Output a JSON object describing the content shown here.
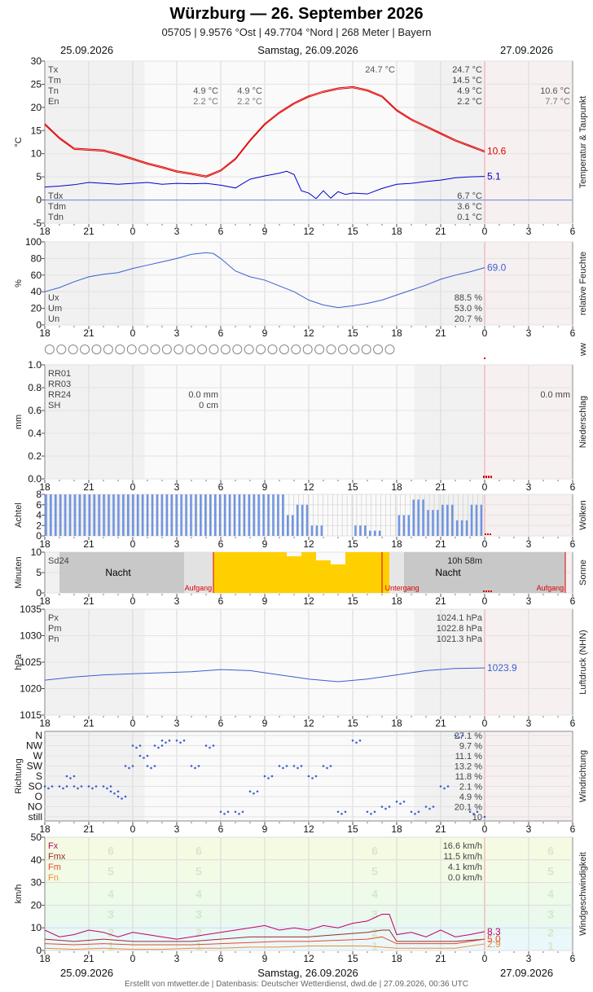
{
  "header": {
    "title": "Würzburg  —  26. September 2026",
    "subtitle": "05705  |  9.9576 °Ost  |  49.7704 °Nord  |  268 Meter  |  Bayern",
    "date_left": "25.09.2026",
    "date_center": "Samstag, 26.09.2026",
    "date_right": "27.09.2026"
  },
  "footer": "Erstellt von mtwetter.de | Datenbasis: Deutscher Wetterdienst, dwd.de | 27.09.2026, 00:36 UTC",
  "x_ticks": [
    "18",
    "21",
    "0",
    "3",
    "6",
    "9",
    "12",
    "15",
    "18",
    "21",
    "0",
    "3",
    "6"
  ],
  "colors": {
    "temp": "#e00000",
    "dew": "#0000cc",
    "series_blue": "#3a5fd0",
    "rain_red": "#d00000",
    "cloud": "#6f95e4",
    "sun": "#ffd000",
    "night": "#c8c8c8"
  },
  "chart_data": [
    {
      "type": "line",
      "panel": "temperature",
      "side_label": "Temperatur & Taupunkt",
      "ylabel": "°C",
      "ylim": [
        -5,
        30
      ],
      "yticks": [
        "30",
        "25",
        "20",
        "15",
        "10",
        "5",
        "0",
        "-5"
      ],
      "xrange_hours": [
        -6,
        30
      ],
      "series": [
        {
          "name": "Temperatur",
          "color": "#e00000",
          "x": [
            -6,
            -5,
            -4,
            -3,
            -2,
            -1,
            0,
            1,
            2,
            3,
            4,
            5,
            6,
            7,
            8,
            9,
            10,
            11,
            12,
            13,
            14,
            15,
            16,
            17,
            18,
            19,
            20,
            21,
            22,
            23,
            24
          ],
          "y": [
            16.5,
            13.5,
            11.2,
            11.0,
            10.8,
            10.0,
            9.0,
            8.0,
            7.2,
            6.3,
            5.8,
            5.2,
            6.5,
            9.0,
            13.0,
            16.5,
            19.0,
            21.0,
            22.5,
            23.5,
            24.2,
            24.5,
            23.8,
            22.5,
            19.5,
            17.5,
            16.0,
            14.5,
            13.0,
            11.8,
            10.6
          ]
        },
        {
          "name": "Taupunkt",
          "color": "#0000cc",
          "x": [
            -6,
            -5,
            -4,
            -3,
            -2,
            -1,
            0,
            1,
            2,
            3,
            4,
            5,
            6,
            7,
            8,
            9,
            10,
            10.5,
            11,
            11.5,
            12,
            12.5,
            13,
            13.5,
            14,
            14.5,
            15,
            16,
            17,
            18,
            19,
            20,
            21,
            22,
            23,
            24
          ],
          "y": [
            2.8,
            3.0,
            3.3,
            3.8,
            3.6,
            3.4,
            3.6,
            3.8,
            3.4,
            3.6,
            3.5,
            3.6,
            3.2,
            2.6,
            4.5,
            5.2,
            5.8,
            6.2,
            5.5,
            2.0,
            1.5,
            0.3,
            2.0,
            0.4,
            1.8,
            1.2,
            1.5,
            1.3,
            2.5,
            3.4,
            3.6,
            4.0,
            4.3,
            4.8,
            5.0,
            5.1
          ]
        }
      ],
      "end_labels": [
        {
          "text": "10.6",
          "color": "#e00000",
          "y": 10.6
        },
        {
          "text": "5.1",
          "color": "#0000cc",
          "y": 5.1
        }
      ],
      "stats_upper": {
        "labels": [
          "Tx",
          "Tm",
          "Tn",
          "En"
        ],
        "day1": {
          "tn": "4.9 °C",
          "en": "2.2 °C"
        },
        "day2": {
          "tx_peak": "24.7 °C",
          "tn": "4.9 °C",
          "en": "2.2 °C"
        },
        "day3": {
          "tx": "24.7 °C",
          "tm": "14.5 °C",
          "tn": "4.9 °C",
          "en": "2.2 °C"
        },
        "day4": {
          "tn": "10.6 °C",
          "en": "7.7 °C"
        }
      },
      "stats_lower": {
        "labels": [
          "Tdx",
          "Tdm",
          "Tdn"
        ],
        "values": [
          "6.7 °C",
          "3.6 °C",
          "0.1 °C"
        ]
      }
    },
    {
      "type": "line",
      "panel": "humidity",
      "side_label": "relative Feuchte",
      "ylabel": "%",
      "ylim": [
        0,
        100
      ],
      "yticks": [
        "100",
        "80",
        "60",
        "40",
        "20",
        "0"
      ],
      "series": [
        {
          "name": "Feuchte",
          "color": "#3a5fd0",
          "x": [
            -6,
            -5,
            -4,
            -3,
            -2,
            -1,
            0,
            1,
            2,
            3,
            4,
            5,
            5.5,
            6,
            7,
            8,
            9,
            10,
            11,
            12,
            13,
            14,
            15,
            16,
            17,
            18,
            19,
            20,
            21,
            22,
            23,
            24
          ],
          "y": [
            40,
            45,
            52,
            58,
            61,
            63,
            68,
            72,
            76,
            80,
            85,
            87,
            86,
            80,
            65,
            58,
            54,
            47,
            40,
            30,
            24,
            21,
            23,
            26,
            30,
            36,
            42,
            48,
            55,
            60,
            64,
            69
          ]
        }
      ],
      "end_labels": [
        {
          "text": "69.0",
          "color": "#3a5fd0",
          "y": 69
        }
      ],
      "stats": {
        "labels": [
          "Ux",
          "Um",
          "Un"
        ],
        "values": [
          "88.5 %",
          "53.0 %",
          "20.7 %"
        ]
      }
    },
    {
      "type": "table",
      "panel": "ww",
      "side_label": "ww",
      "symbol": "circle",
      "count": 30
    },
    {
      "type": "bar",
      "panel": "precipitation",
      "side_label": "Niederschlag",
      "ylabel": "mm",
      "ylim": [
        0,
        1
      ],
      "yticks": [
        "1.0",
        "0.8",
        "0.6",
        "0.4",
        "0.2",
        "0.0"
      ],
      "labels": [
        "RR01",
        "RR03",
        "RR24",
        "SH"
      ],
      "values_day2": [
        "0.0 mm",
        "0 cm"
      ],
      "value_day4": "0.0 mm"
    },
    {
      "type": "bar",
      "panel": "clouds",
      "side_label": "Wolken",
      "ylabel": "Achtel",
      "ylim": [
        0,
        8
      ],
      "yticks": [
        "8",
        "6",
        "4",
        "2",
        "0"
      ],
      "hourly_octas": [
        {
          "h": -6,
          "v": 8
        },
        {
          "h": -5,
          "v": 8
        },
        {
          "h": -4,
          "v": 8
        },
        {
          "h": -3,
          "v": 8
        },
        {
          "h": -2,
          "v": 8
        },
        {
          "h": -1,
          "v": 8
        },
        {
          "h": 0,
          "v": 8
        },
        {
          "h": 1,
          "v": 8
        },
        {
          "h": 2,
          "v": 8
        },
        {
          "h": 3,
          "v": 8
        },
        {
          "h": 4,
          "v": 8
        },
        {
          "h": 5,
          "v": 8
        },
        {
          "h": 6,
          "v": 8
        },
        {
          "h": 7,
          "v": 8
        },
        {
          "h": 8,
          "v": 8
        },
        {
          "h": 9,
          "v": 8
        },
        {
          "h": 10,
          "v": 8
        },
        {
          "h": 10.5,
          "v": 4
        },
        {
          "h": 11,
          "v": 6
        },
        {
          "h": 12,
          "v": 2
        },
        {
          "h": 13,
          "v": 0
        },
        {
          "h": 14,
          "v": 0
        },
        {
          "h": 15,
          "v": 2
        },
        {
          "h": 16,
          "v": 1
        },
        {
          "h": 17,
          "v": 0
        },
        {
          "h": 18,
          "v": 4
        },
        {
          "h": 19,
          "v": 7
        },
        {
          "h": 20,
          "v": 5
        },
        {
          "h": 21,
          "v": 6
        },
        {
          "h": 22,
          "v": 3
        },
        {
          "h": 23,
          "v": 6
        },
        {
          "h": 24,
          "v": 8
        }
      ]
    },
    {
      "type": "bar",
      "panel": "sunshine",
      "side_label": "Sonne",
      "ylabel": "Minuten",
      "ylim": [
        0,
        10
      ],
      "yticks": [
        "10",
        "5",
        "0"
      ],
      "label_sd24": "Sd24",
      "sd24_value": "10h 58m",
      "night_label": "Nacht",
      "sunrise_label": "Aufgang",
      "sunset_label": "Untergang",
      "sun_minutes": [
        {
          "h": 6,
          "v": 10
        },
        {
          "h": 7,
          "v": 10
        },
        {
          "h": 8,
          "v": 10
        },
        {
          "h": 9,
          "v": 10
        },
        {
          "h": 10,
          "v": 10
        },
        {
          "h": 11,
          "v": 9
        },
        {
          "h": 12,
          "v": 10
        },
        {
          "h": 13,
          "v": 8
        },
        {
          "h": 14,
          "v": 7
        },
        {
          "h": 15,
          "v": 10
        },
        {
          "h": 16,
          "v": 10
        },
        {
          "h": 17,
          "v": 10
        }
      ]
    },
    {
      "type": "line",
      "panel": "pressure",
      "side_label": "Luftdruck (NHN)",
      "ylabel": "hPa",
      "ylim": [
        1015,
        1035
      ],
      "yticks": [
        "1035",
        "1030",
        "1025",
        "1020",
        "1015"
      ],
      "series": [
        {
          "name": "Luftdruck",
          "color": "#3a5fd0",
          "x": [
            -6,
            -4,
            -2,
            0,
            2,
            4,
            6,
            8,
            10,
            12,
            14,
            16,
            18,
            20,
            22,
            24
          ],
          "y": [
            1021.6,
            1022.2,
            1022.6,
            1022.8,
            1023.0,
            1023.2,
            1023.6,
            1023.4,
            1022.6,
            1021.8,
            1021.3,
            1021.8,
            1022.6,
            1023.4,
            1023.8,
            1023.9
          ]
        }
      ],
      "end_labels": [
        {
          "text": "1023.9",
          "color": "#3a5fd0",
          "y": 1023.9
        }
      ],
      "stats": {
        "labels": [
          "Px",
          "Pm",
          "Pn"
        ],
        "values": [
          "1024.1 hPa",
          "1022.8 hPa",
          "1021.3 hPa"
        ]
      }
    },
    {
      "type": "scatter",
      "panel": "wind_direction",
      "side_label": "Windrichtung",
      "ylabel": "Richtung",
      "categories": [
        "N",
        "NW",
        "W",
        "SW",
        "S",
        "SO",
        "O",
        "NO",
        "still"
      ],
      "percents": [
        "27.1 %",
        "9.7 %",
        "11.1 %",
        "13.2 %",
        "11.8 %",
        "2.1 %",
        "4.9 %",
        "20.1 %",
        "10"
      ],
      "points": [
        {
          "h": -6,
          "d": 5
        },
        {
          "h": -5,
          "d": 5
        },
        {
          "h": -4.5,
          "d": 4
        },
        {
          "h": -4,
          "d": 5
        },
        {
          "h": -3,
          "d": 5
        },
        {
          "h": -2,
          "d": 5
        },
        {
          "h": -1.5,
          "d": 5.5
        },
        {
          "h": -1,
          "d": 6
        },
        {
          "h": -0.5,
          "d": 3
        },
        {
          "h": 0,
          "d": 1
        },
        {
          "h": 0.5,
          "d": 2
        },
        {
          "h": 1,
          "d": 3
        },
        {
          "h": 1.5,
          "d": 1
        },
        {
          "h": 2,
          "d": 0.5
        },
        {
          "h": 3,
          "d": 0.5
        },
        {
          "h": 4,
          "d": 3
        },
        {
          "h": 5,
          "d": 1
        },
        {
          "h": 6,
          "d": 7.5
        },
        {
          "h": 7,
          "d": 7.5
        },
        {
          "h": 8,
          "d": 5.5
        },
        {
          "h": 9,
          "d": 4
        },
        {
          "h": 10,
          "d": 3
        },
        {
          "h": 11,
          "d": 3
        },
        {
          "h": 12,
          "d": 4
        },
        {
          "h": 13,
          "d": 3
        },
        {
          "h": 14,
          "d": 7.5
        },
        {
          "h": 15,
          "d": 0.5
        },
        {
          "h": 16,
          "d": 7.5
        },
        {
          "h": 17,
          "d": 7
        },
        {
          "h": 18,
          "d": 6.5
        },
        {
          "h": 19,
          "d": 7.5
        },
        {
          "h": 20,
          "d": 7
        },
        {
          "h": 21,
          "d": 5
        },
        {
          "h": 22,
          "d": 0
        },
        {
          "h": 23,
          "d": 7.5
        },
        {
          "h": 24,
          "d": 8
        }
      ]
    },
    {
      "type": "line",
      "panel": "wind_speed",
      "side_label": "Windgeschwindigkeit",
      "ylabel": "km/h",
      "ylim": [
        0,
        50
      ],
      "yticks": [
        "50",
        "40",
        "30",
        "20",
        "10",
        "0"
      ],
      "beaufort_labels": [
        "6",
        "5",
        "4",
        "3",
        "2",
        "1"
      ],
      "series": [
        {
          "name": "Fx",
          "color": "#c0006a",
          "x": [
            -6,
            -5,
            -4,
            -3,
            -2,
            -1,
            0,
            1,
            2,
            3,
            4,
            5,
            6,
            7,
            8,
            9,
            10,
            11,
            12,
            13,
            14,
            15,
            16,
            17,
            17.5,
            18,
            19,
            20,
            21,
            22,
            23,
            24
          ],
          "y": [
            9,
            6,
            7,
            9,
            8,
            6,
            8,
            7,
            6,
            5,
            6,
            7,
            8,
            9,
            10,
            11,
            9,
            10,
            9,
            11,
            10,
            12,
            13,
            16,
            16,
            7,
            8,
            6,
            9,
            6,
            7,
            8.3
          ]
        },
        {
          "name": "Fmx",
          "color": "#9a2b2b",
          "x": [
            -6,
            -4,
            -2,
            0,
            2,
            4,
            6,
            8,
            10,
            12,
            14,
            16,
            17,
            17.5,
            18,
            20,
            22,
            24
          ],
          "y": [
            5,
            4,
            5,
            4,
            4,
            4,
            5,
            6,
            6,
            6,
            7,
            8,
            9,
            9,
            4,
            4,
            4,
            5
          ]
        },
        {
          "name": "Fm",
          "color": "#e84a2a",
          "x": [
            -6,
            -4,
            -2,
            0,
            2,
            4,
            6,
            8,
            10,
            12,
            14,
            16,
            17,
            18,
            20,
            22,
            24
          ],
          "y": [
            3,
            2.5,
            3,
            2.5,
            2.5,
            2.5,
            3,
            3.5,
            4,
            4,
            4.5,
            5,
            6,
            3,
            3,
            3,
            5.0
          ]
        },
        {
          "name": "Fn",
          "color": "#f08a3a",
          "x": [
            -6,
            -4,
            -2,
            0,
            2,
            4,
            6,
            8,
            10,
            12,
            14,
            16,
            18,
            20,
            22,
            24
          ],
          "y": [
            1,
            0.5,
            1,
            0.5,
            0.5,
            1,
            1,
            1.5,
            1.5,
            2,
            2,
            2,
            1,
            1,
            1,
            2.9
          ]
        }
      ],
      "end_labels": [
        {
          "text": "8.3",
          "color": "#c0006a",
          "y": 8.3
        },
        {
          "text": "5.0",
          "color": "#e84a2a",
          "y": 5.0
        },
        {
          "text": "2.9",
          "color": "#f08a3a",
          "y": 2.9
        }
      ],
      "stats": {
        "labels": [
          "Fx",
          "Fmx",
          "Fm",
          "Fn"
        ],
        "values": [
          "16.6 km/h",
          "11.5 km/h",
          "4.1 km/h",
          "0.0 km/h"
        ]
      }
    }
  ]
}
